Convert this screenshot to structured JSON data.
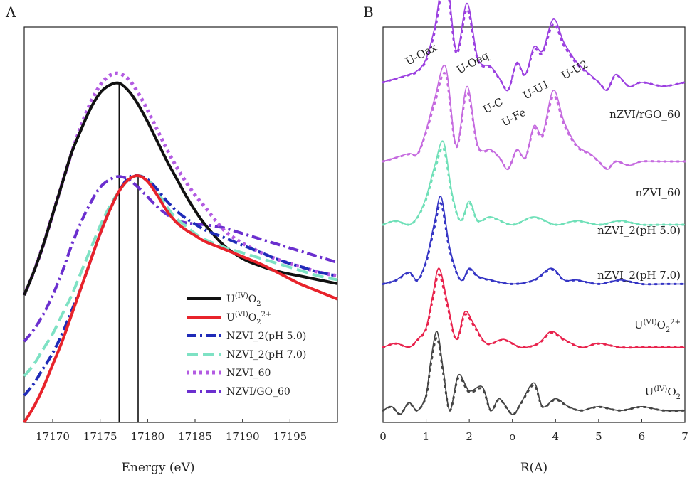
{
  "panels": [
    {
      "letter": "A"
    },
    {
      "letter": "B"
    }
  ],
  "colors": {
    "UIVO2": "#111111",
    "UVIO2": "#e8232b",
    "nzvi2_ph5": "#1f2bb8",
    "nzvi2_ph7": "#7ee2c4",
    "nzvi60": "#b35be2",
    "nzvigo60": "#6b2fcf",
    "violet": "#9b3fe0",
    "nzvi60_b": "#c56adf",
    "mint_b": "#6fe0b8",
    "blue_b": "#3434c4",
    "red_b": "#e8224c",
    "grey_b": "#444444"
  },
  "chart_data": [
    {
      "type": "line",
      "panel": "A",
      "title": "",
      "xlabel": "Energy (eV)",
      "ylabel": "",
      "xlim": [
        17167,
        17200
      ],
      "ylim": [
        0,
        1.0
      ],
      "xticks": [
        17170,
        17175,
        17180,
        17185,
        17190,
        17195
      ],
      "xtick_labels": [
        "17170",
        "17175",
        "17180",
        "17185",
        "17190",
        "17195"
      ],
      "vlines": [
        17177.0,
        17179.0
      ],
      "series": [
        {
          "key": "nzvigo60",
          "name": "NZVI/GO_60",
          "name_parts": [
            "NZVI/GO_60"
          ],
          "dash": "14,5,3,5",
          "width": 4,
          "x": [
            17167,
            17168,
            17169,
            17170,
            17171,
            17172,
            17173,
            17174,
            17175,
            17176,
            17177,
            17178,
            17179,
            17180,
            17181,
            17182,
            17183,
            17184,
            17185,
            17186,
            17188,
            17190,
            17192,
            17194,
            17196,
            17198,
            17200
          ],
          "y": [
            0.21,
            0.24,
            0.28,
            0.33,
            0.39,
            0.46,
            0.52,
            0.57,
            0.61,
            0.63,
            0.638,
            0.63,
            0.61,
            0.585,
            0.56,
            0.54,
            0.525,
            0.518,
            0.515,
            0.513,
            0.505,
            0.49,
            0.475,
            0.46,
            0.445,
            0.43,
            0.415
          ]
        },
        {
          "key": "nzvi60",
          "name": "NZVI_60",
          "name_parts": [
            "NZVI_60"
          ],
          "dash": "4,5",
          "width": 5,
          "x": [
            17167,
            17168,
            17169,
            17170,
            17171,
            17172,
            17173,
            17174,
            17175,
            17176,
            17177,
            17178,
            17179,
            17180,
            17181,
            17182,
            17183,
            17184,
            17185,
            17186,
            17188,
            17190,
            17192,
            17194,
            17196,
            17198,
            17200
          ],
          "y": [
            0.33,
            0.39,
            0.46,
            0.54,
            0.62,
            0.7,
            0.77,
            0.83,
            0.875,
            0.9,
            0.905,
            0.89,
            0.855,
            0.81,
            0.76,
            0.71,
            0.665,
            0.625,
            0.59,
            0.56,
            0.5,
            0.465,
            0.44,
            0.42,
            0.405,
            0.39,
            0.38
          ]
        },
        {
          "key": "UIVO2",
          "name": "U(IV)O2",
          "name_parts": [
            "U",
            "(IV)",
            "O",
            "2"
          ],
          "dash": "",
          "width": 4,
          "x": [
            17167,
            17168,
            17169,
            17170,
            17171,
            17172,
            17173,
            17174,
            17175,
            17176,
            17177,
            17178,
            17179,
            17180,
            17181,
            17182,
            17183,
            17184,
            17185,
            17186,
            17188,
            17190,
            17192,
            17194,
            17196,
            17198,
            17200
          ],
          "y": [
            0.33,
            0.39,
            0.46,
            0.54,
            0.62,
            0.7,
            0.76,
            0.815,
            0.855,
            0.875,
            0.88,
            0.86,
            0.825,
            0.78,
            0.73,
            0.68,
            0.635,
            0.59,
            0.55,
            0.515,
            0.46,
            0.425,
            0.405,
            0.39,
            0.38,
            0.37,
            0.36
          ]
        },
        {
          "key": "nzvi2_ph7",
          "name": "NZVI_2(pH 7.0)",
          "name_parts": [
            "NZVI_2(pH 7.0)"
          ],
          "dash": "16,7",
          "width": 4,
          "x": [
            17167,
            17168,
            17169,
            17170,
            17171,
            17172,
            17173,
            17174,
            17175,
            17176,
            17177,
            17178,
            17179,
            17180,
            17181,
            17182,
            17183,
            17184,
            17185,
            17186,
            17188,
            17190,
            17192,
            17194,
            17196,
            17198,
            17200
          ],
          "y": [
            0.12,
            0.15,
            0.19,
            0.23,
            0.28,
            0.33,
            0.39,
            0.45,
            0.51,
            0.56,
            0.6,
            0.63,
            0.64,
            0.63,
            0.6,
            0.56,
            0.53,
            0.51,
            0.49,
            0.475,
            0.455,
            0.44,
            0.425,
            0.41,
            0.395,
            0.38,
            0.37
          ]
        },
        {
          "key": "nzvi2_ph5",
          "name": "NZVI_2(pH 5.0)",
          "name_parts": [
            "NZVI_2(pH 5.0)"
          ],
          "dash": "14,5,3,5",
          "width": 4,
          "x": [
            17167,
            17168,
            17169,
            17170,
            17171,
            17172,
            17173,
            17174,
            17175,
            17176,
            17177,
            17178,
            17179,
            17180,
            17181,
            17182,
            17183,
            17184,
            17185,
            17186,
            17188,
            17190,
            17192,
            17194,
            17196,
            17198,
            17200
          ],
          "y": [
            0.07,
            0.1,
            0.14,
            0.18,
            0.23,
            0.29,
            0.35,
            0.42,
            0.49,
            0.55,
            0.6,
            0.635,
            0.64,
            0.63,
            0.605,
            0.575,
            0.55,
            0.53,
            0.515,
            0.5,
            0.48,
            0.46,
            0.44,
            0.42,
            0.405,
            0.39,
            0.38
          ]
        },
        {
          "key": "UVIO2",
          "name": "U(VI)O2 2+",
          "name_parts": [
            "U",
            "(VI)",
            "O",
            "2",
            "2+"
          ],
          "dash": "",
          "width": 4,
          "x": [
            17167,
            17168,
            17169,
            17170,
            17171,
            17172,
            17173,
            17174,
            17175,
            17176,
            17177,
            17178,
            17179,
            17180,
            17181,
            17182,
            17183,
            17184,
            17185,
            17186,
            17188,
            17190,
            17192,
            17194,
            17196,
            17198,
            17200
          ],
          "y": [
            0.0,
            0.04,
            0.09,
            0.15,
            0.21,
            0.28,
            0.35,
            0.42,
            0.49,
            0.55,
            0.6,
            0.63,
            0.64,
            0.625,
            0.59,
            0.55,
            0.52,
            0.5,
            0.485,
            0.47,
            0.45,
            0.43,
            0.41,
            0.385,
            0.36,
            0.34,
            0.32
          ]
        }
      ],
      "legend_order": [
        "UIVO2",
        "UVIO2",
        "nzvi2_ph5",
        "nzvi2_ph7",
        "nzvi60",
        "nzvigo60"
      ],
      "legend_position": "bottom-right"
    },
    {
      "type": "line",
      "panel": "B",
      "title": "",
      "xlabel": "R(A)",
      "ylabel": "",
      "xlim": [
        0,
        7
      ],
      "ylim": [
        0,
        10
      ],
      "xticks": [
        0,
        1,
        2,
        3,
        4,
        5,
        6,
        7
      ],
      "xtick_labels": [
        "0",
        "1",
        "2",
        "o",
        "4",
        "5",
        "6",
        "7"
      ],
      "series": [
        {
          "key": "violet",
          "name": "nZVI/rGO_60",
          "name_parts": [
            "nZVI/rGO_60"
          ],
          "offset": 8.6,
          "x": [
            0,
            0.3,
            0.6,
            0.8,
            1.0,
            1.2,
            1.45,
            1.7,
            1.95,
            2.2,
            2.5,
            2.7,
            2.9,
            3.1,
            3.3,
            3.5,
            3.7,
            3.95,
            4.2,
            4.5,
            4.8,
            5.0,
            5.2,
            5.4,
            5.7,
            6.0,
            6.5,
            7.0
          ],
          "y": [
            0.0,
            0.1,
            0.2,
            0.3,
            0.6,
            1.4,
            2.8,
            0.8,
            2.0,
            0.6,
            0.4,
            0.1,
            -0.2,
            0.5,
            0.2,
            0.9,
            0.8,
            1.6,
            1.0,
            0.5,
            0.2,
            0.0,
            -0.2,
            0.2,
            -0.1,
            0.0,
            -0.1,
            0.0
          ]
        },
        {
          "key": "nzvi60_b",
          "name": "nZVI_60",
          "name_parts": [
            "nZVI_60"
          ],
          "offset": 6.6,
          "x": [
            0,
            0.3,
            0.6,
            0.8,
            1.0,
            1.2,
            1.45,
            1.7,
            1.95,
            2.2,
            2.5,
            2.7,
            2.9,
            3.1,
            3.3,
            3.5,
            3.7,
            3.95,
            4.2,
            4.5,
            4.8,
            5.0,
            5.2,
            5.4,
            5.7,
            6.0,
            6.5,
            7.0
          ],
          "y": [
            0.0,
            0.1,
            0.2,
            0.2,
            0.8,
            1.6,
            2.4,
            0.4,
            1.9,
            0.4,
            0.3,
            0.1,
            -0.2,
            0.3,
            0.1,
            0.9,
            0.7,
            1.8,
            1.0,
            0.4,
            0.2,
            0.0,
            -0.2,
            0.0,
            -0.1,
            0.0,
            0.0,
            0.0
          ]
        },
        {
          "key": "mint_b",
          "name": "nZVI_2(pH 5.0)",
          "name_parts": [
            "nZVI_2(pH 5.0)"
          ],
          "offset": 5.0,
          "x": [
            0,
            0.3,
            0.6,
            0.8,
            1.0,
            1.2,
            1.4,
            1.6,
            1.8,
            2.0,
            2.2,
            2.5,
            3.0,
            3.5,
            4.0,
            4.5,
            5.0,
            5.5,
            6.0,
            6.5,
            7.0
          ],
          "y": [
            0.0,
            0.1,
            0.0,
            0.2,
            0.7,
            1.5,
            2.1,
            0.8,
            0.1,
            0.6,
            0.1,
            0.2,
            0.0,
            0.2,
            0.0,
            0.1,
            0.0,
            0.1,
            0.0,
            0.0,
            0.0
          ]
        },
        {
          "key": "blue_b",
          "name": "nZVI_2(pH 7.0)",
          "name_parts": [
            "nZVI_2(pH 7.0)"
          ],
          "offset": 3.5,
          "x": [
            0,
            0.3,
            0.6,
            0.8,
            1.0,
            1.2,
            1.35,
            1.55,
            1.8,
            2.0,
            2.2,
            2.5,
            3.0,
            3.5,
            3.9,
            4.2,
            4.5,
            5.0,
            5.5,
            6.0,
            6.5,
            7.0
          ],
          "y": [
            0.0,
            0.1,
            0.3,
            0.1,
            0.6,
            1.6,
            2.2,
            0.9,
            0.1,
            0.4,
            0.2,
            0.1,
            0.0,
            0.1,
            0.4,
            0.1,
            0.1,
            0.0,
            0.1,
            0.0,
            0.0,
            0.0
          ]
        },
        {
          "key": "red_b",
          "name": "U(VI)O2 2+",
          "name_parts": [
            "U",
            "(VI)",
            "O",
            "2",
            "2+"
          ],
          "offset": 1.9,
          "x": [
            0,
            0.3,
            0.6,
            0.8,
            1.0,
            1.15,
            1.3,
            1.5,
            1.7,
            1.9,
            2.1,
            2.4,
            2.8,
            3.2,
            3.6,
            3.9,
            4.2,
            4.6,
            5.0,
            5.5,
            6.0,
            6.5,
            7.0
          ],
          "y": [
            0.0,
            0.1,
            0.0,
            0.2,
            0.5,
            1.3,
            2.0,
            1.1,
            0.2,
            0.9,
            0.6,
            0.1,
            0.2,
            0.0,
            0.1,
            0.4,
            0.2,
            0.0,
            0.1,
            0.0,
            0.0,
            0.0,
            0.0
          ]
        },
        {
          "key": "grey_b",
          "name": "U(IV)O2",
          "name_parts": [
            "U",
            "(IV)",
            "O",
            "2"
          ],
          "offset": 0.3,
          "x": [
            0,
            0.2,
            0.4,
            0.6,
            0.8,
            1.0,
            1.1,
            1.25,
            1.4,
            1.55,
            1.75,
            2.0,
            2.3,
            2.5,
            2.7,
            3.0,
            3.2,
            3.5,
            3.7,
            4.0,
            4.3,
            4.6,
            5.0,
            5.5,
            6.0,
            6.5,
            7.0
          ],
          "y": [
            0.0,
            0.1,
            -0.1,
            0.2,
            0.0,
            0.4,
            1.2,
            2.0,
            1.0,
            0.0,
            0.9,
            0.5,
            0.6,
            0.0,
            0.3,
            -0.1,
            0.2,
            0.7,
            0.1,
            0.3,
            0.1,
            0.0,
            0.1,
            0.0,
            0.1,
            0.0,
            0.0
          ]
        }
      ],
      "peak_labels": [
        "U-Oax",
        "U-Oeq",
        "U-C",
        "U-Fe",
        "U-U1",
        "U-U2"
      ]
    }
  ]
}
